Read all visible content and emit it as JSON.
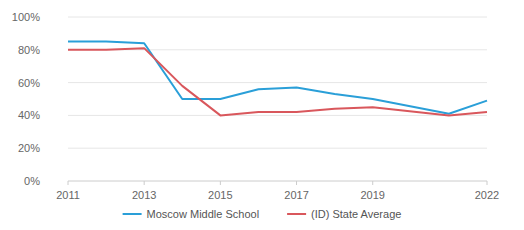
{
  "chart_data": {
    "type": "line",
    "x": [
      2011,
      2012,
      2013,
      2014,
      2015,
      2016,
      2017,
      2018,
      2019,
      2021,
      2022
    ],
    "series": [
      {
        "name": "Moscow Middle School",
        "color": "#2a9fd8",
        "values": [
          85,
          85,
          84,
          50,
          50,
          56,
          57,
          53,
          50,
          41,
          49
        ]
      },
      {
        "name": "(ID) State Average",
        "color": "#d9575c",
        "values": [
          80,
          80,
          81,
          58,
          40,
          42,
          42,
          44,
          45,
          40,
          42
        ]
      }
    ],
    "xlim": [
      2011,
      2022
    ],
    "xticks": [
      2011,
      2013,
      2015,
      2017,
      2019,
      2022
    ],
    "ylim": [
      0,
      100
    ],
    "yticks": [
      {
        "value": 0,
        "label": "0%"
      },
      {
        "value": 20,
        "label": "20%"
      },
      {
        "value": 40,
        "label": "40%"
      },
      {
        "value": 60,
        "label": "60%"
      },
      {
        "value": 80,
        "label": "80%"
      },
      {
        "value": 100,
        "label": "100%"
      }
    ],
    "grid": true,
    "legend": "bottom"
  }
}
